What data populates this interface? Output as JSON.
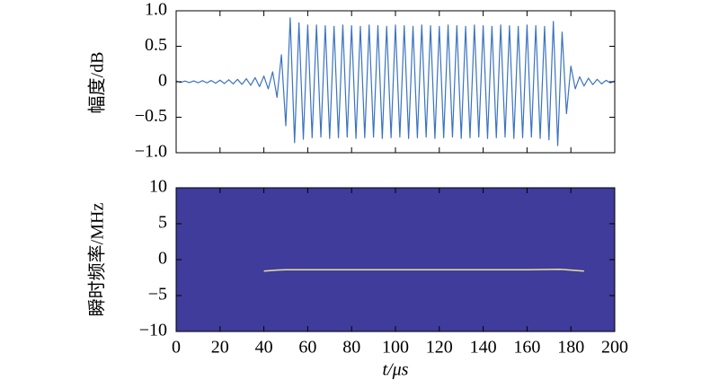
{
  "chart_data": [
    {
      "type": "line",
      "y_label": "幅度/dB",
      "color": "#3a73c0",
      "x": [
        0,
        2,
        4,
        6,
        8,
        10,
        12,
        14,
        16,
        18,
        20,
        22,
        24,
        26,
        28,
        30,
        32,
        34,
        36,
        38,
        40,
        42,
        44,
        46,
        48,
        50,
        52,
        54,
        56,
        58,
        60,
        62,
        64,
        66,
        68,
        70,
        72,
        74,
        76,
        78,
        80,
        82,
        84,
        86,
        88,
        90,
        92,
        94,
        96,
        98,
        100,
        102,
        104,
        106,
        108,
        110,
        112,
        114,
        116,
        118,
        120,
        122,
        124,
        126,
        128,
        130,
        132,
        134,
        136,
        138,
        140,
        142,
        144,
        146,
        148,
        150,
        152,
        154,
        156,
        158,
        160,
        162,
        164,
        166,
        168,
        170,
        172,
        174,
        176,
        178,
        180,
        182,
        184,
        186,
        188,
        190,
        192,
        194,
        196,
        198,
        200
      ],
      "values": [
        0.01,
        -0.01,
        0.01,
        -0.012,
        0.012,
        -0.014,
        0.015,
        -0.016,
        0.018,
        -0.02,
        0.022,
        -0.025,
        0.028,
        -0.03,
        0.034,
        -0.038,
        0.043,
        -0.05,
        0.058,
        -0.068,
        0.08,
        -0.1,
        0.14,
        -0.22,
        0.38,
        -0.62,
        0.9,
        -0.86,
        0.83,
        -0.81,
        0.8,
        -0.79,
        0.8,
        -0.78,
        0.79,
        -0.8,
        0.78,
        -0.79,
        0.8,
        -0.78,
        0.79,
        -0.8,
        0.78,
        -0.79,
        0.8,
        -0.78,
        0.79,
        -0.8,
        0.78,
        -0.79,
        0.8,
        -0.78,
        0.79,
        -0.8,
        0.78,
        -0.79,
        0.8,
        -0.78,
        0.79,
        -0.8,
        0.78,
        -0.79,
        0.8,
        -0.78,
        0.79,
        -0.8,
        0.78,
        -0.79,
        0.8,
        -0.78,
        0.79,
        -0.8,
        0.78,
        -0.79,
        0.8,
        -0.78,
        0.79,
        -0.8,
        0.78,
        -0.79,
        0.8,
        -0.78,
        0.79,
        -0.8,
        0.78,
        -0.82,
        0.85,
        -0.9,
        0.7,
        -0.45,
        0.22,
        -0.1,
        0.07,
        -0.06,
        0.05,
        -0.04,
        0.035,
        -0.03,
        0.02,
        -0.015,
        0.01
      ],
      "xlim": [
        0,
        200
      ],
      "xticks": [
        0,
        20,
        40,
        60,
        80,
        100,
        120,
        140,
        160,
        180,
        200
      ],
      "ylim": [
        -1,
        1
      ],
      "yticks": [
        {
          "value": -1,
          "label": "−1.0"
        },
        {
          "value": -0.5,
          "label": "−0.5"
        },
        0,
        0.5,
        {
          "value": 1,
          "label": "1.0"
        }
      ]
    },
    {
      "type": "spectrogram",
      "y_label": "瞬时频率/MHz",
      "x_label": "t/μs",
      "background_color": "#3f3c9c",
      "color": "#e6e29a",
      "x": [
        40,
        46,
        50,
        60,
        80,
        100,
        120,
        140,
        160,
        175,
        180,
        186
      ],
      "values": [
        -1.6,
        -1.45,
        -1.4,
        -1.4,
        -1.4,
        -1.4,
        -1.4,
        -1.4,
        -1.4,
        -1.35,
        -1.45,
        -1.6
      ],
      "xlim": [
        0,
        200
      ],
      "xticks": [
        0,
        20,
        40,
        60,
        80,
        100,
        120,
        140,
        160,
        180,
        200
      ],
      "ylim": [
        -10,
        10
      ],
      "yticks": [
        {
          "value": -10,
          "label": "−10"
        },
        {
          "value": -5,
          "label": "−5"
        },
        0,
        5,
        10
      ]
    }
  ]
}
